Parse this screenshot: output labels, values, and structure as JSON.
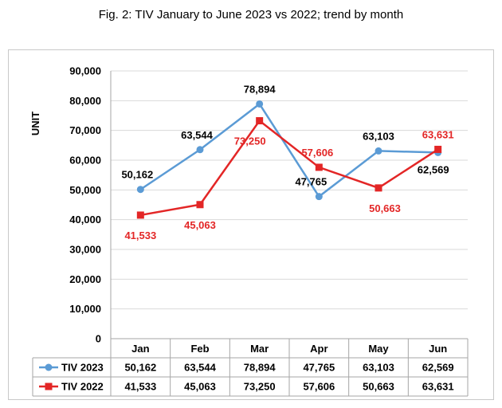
{
  "caption": "Fig. 2: TIV January to June 2023 vs 2022; trend by month",
  "colors": {
    "tiv2023": "#5b9bd5",
    "tiv2022": "#e32626",
    "grid": "#d9d9d9",
    "table_border": "#a6a6a6"
  },
  "chart_data": {
    "type": "line",
    "title": "",
    "xlabel": "",
    "ylabel": "UNIT",
    "categories": [
      "Jan",
      "Feb",
      "Mar",
      "Apr",
      "May",
      "Jun"
    ],
    "ylim": [
      0,
      90000
    ],
    "yticks": [
      "0",
      "10,000",
      "20,000",
      "30,000",
      "40,000",
      "50,000",
      "60,000",
      "70,000",
      "80,000",
      "90,000"
    ],
    "grid": true,
    "legend": "data-table",
    "series": [
      {
        "name": "TIV 2023",
        "values": [
          50162,
          63544,
          78894,
          47765,
          63103,
          62569
        ],
        "labels": [
          "50,162",
          "63,544",
          "78,894",
          "47,765",
          "63,103",
          "62,569"
        ]
      },
      {
        "name": "TIV 2022",
        "values": [
          41533,
          45063,
          73250,
          57606,
          50663,
          63631
        ],
        "labels": [
          "41,533",
          "45,063",
          "73,250",
          "57,606",
          "50,663",
          "63,631"
        ]
      }
    ]
  }
}
